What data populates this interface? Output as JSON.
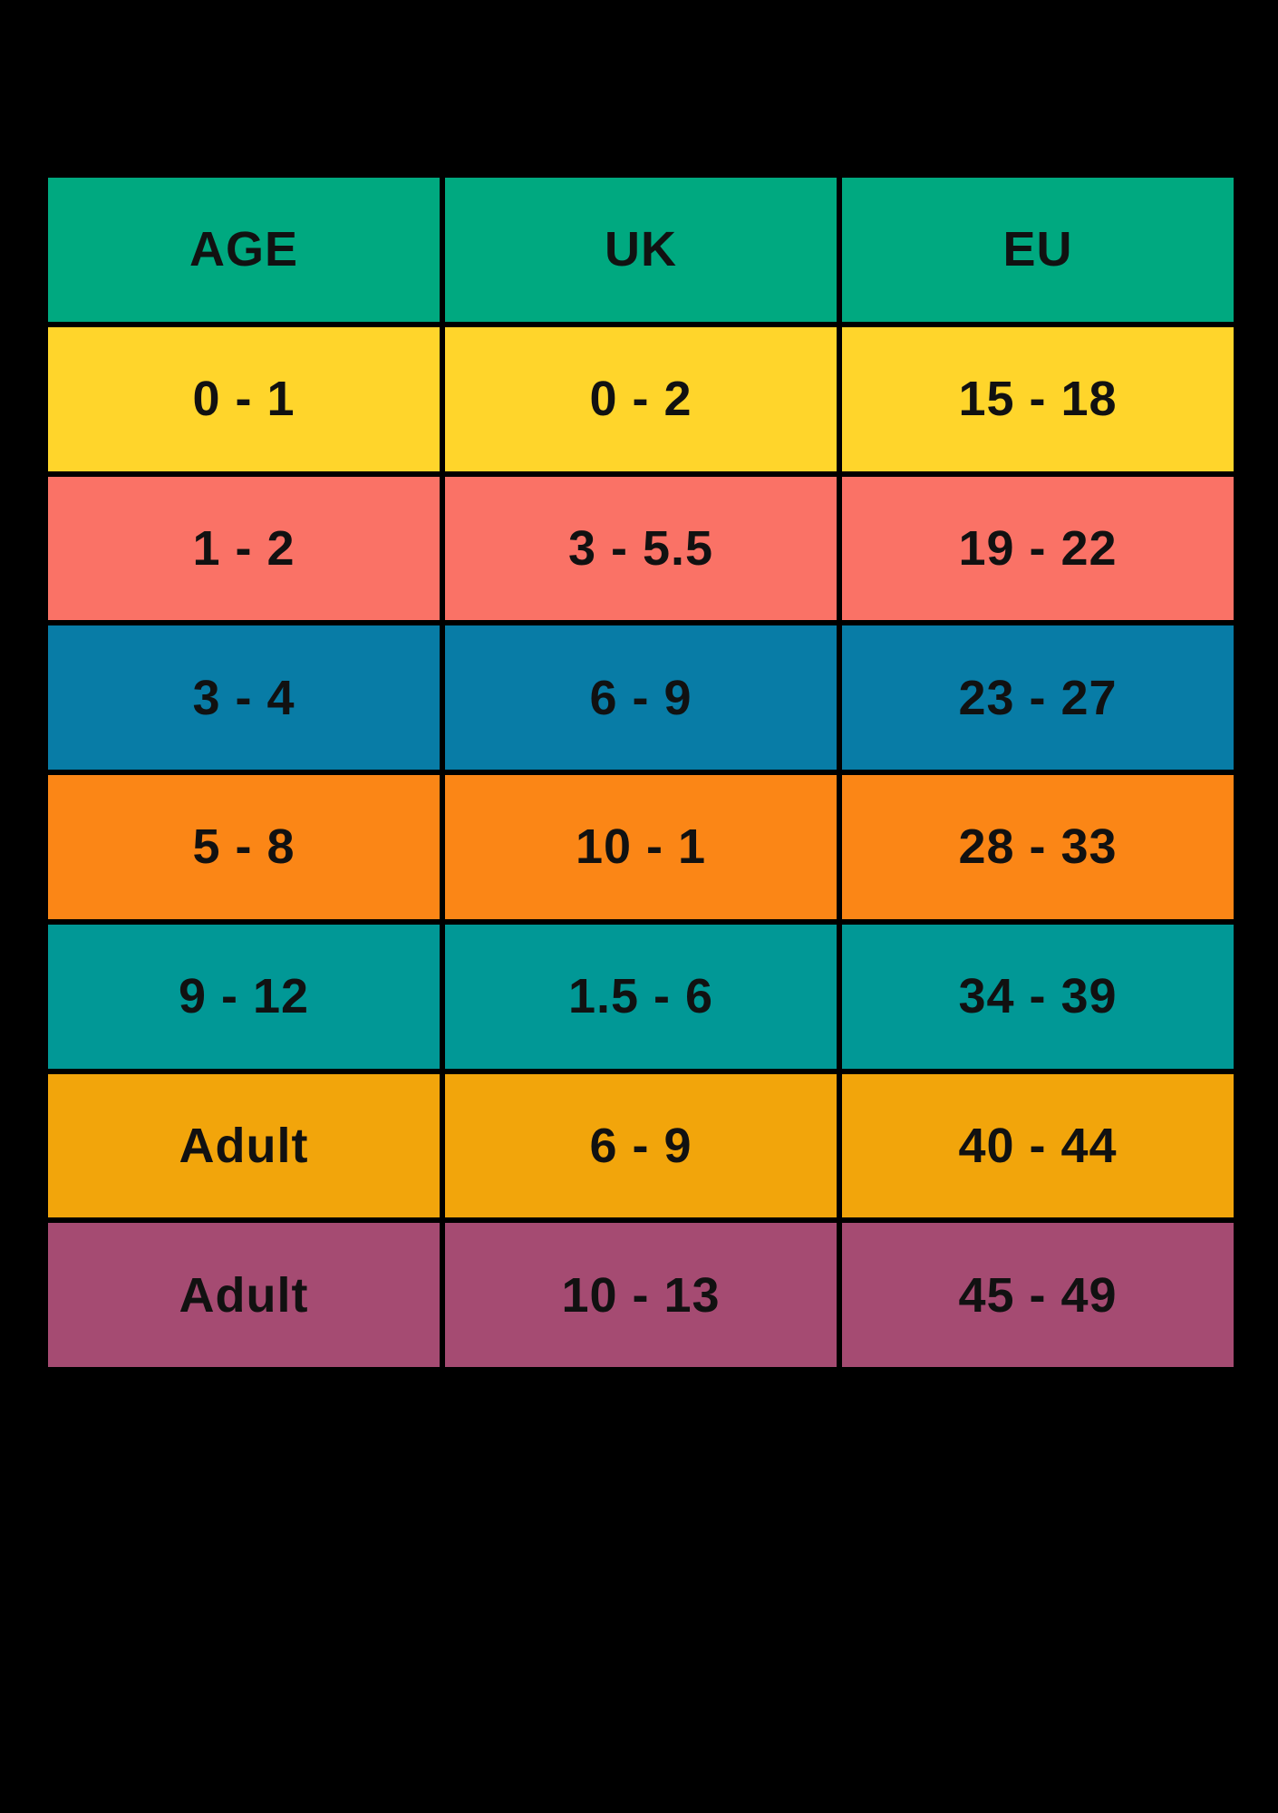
{
  "colors": {
    "background": "#000000",
    "grid_line": "#000000",
    "text": "#111111",
    "header_bg": "#00A980",
    "row_bgs": [
      "#FFD52B",
      "#FA7266",
      "#087CA6",
      "#FB8616",
      "#019896",
      "#F2A50B",
      "#A54B72"
    ]
  },
  "chart_data": {
    "type": "table",
    "columns": [
      "AGE",
      "UK",
      "EU"
    ],
    "rows": [
      [
        "0 - 1",
        "0 - 2",
        "15 - 18"
      ],
      [
        "1 - 2",
        "3 - 5.5",
        "19 - 22"
      ],
      [
        "3 - 4",
        "6 - 9",
        "23 - 27"
      ],
      [
        "5 - 8",
        "10 - 1",
        "28 - 33"
      ],
      [
        "9 - 12",
        "1.5 - 6",
        "34 - 39"
      ],
      [
        "Adult",
        "6 - 9",
        "40 - 44"
      ],
      [
        "Adult",
        "10 - 13",
        "45 - 49"
      ]
    ],
    "layout_hints": {
      "legend": "none",
      "grid": "thick black separators between all cells",
      "header_position": "top row"
    }
  }
}
